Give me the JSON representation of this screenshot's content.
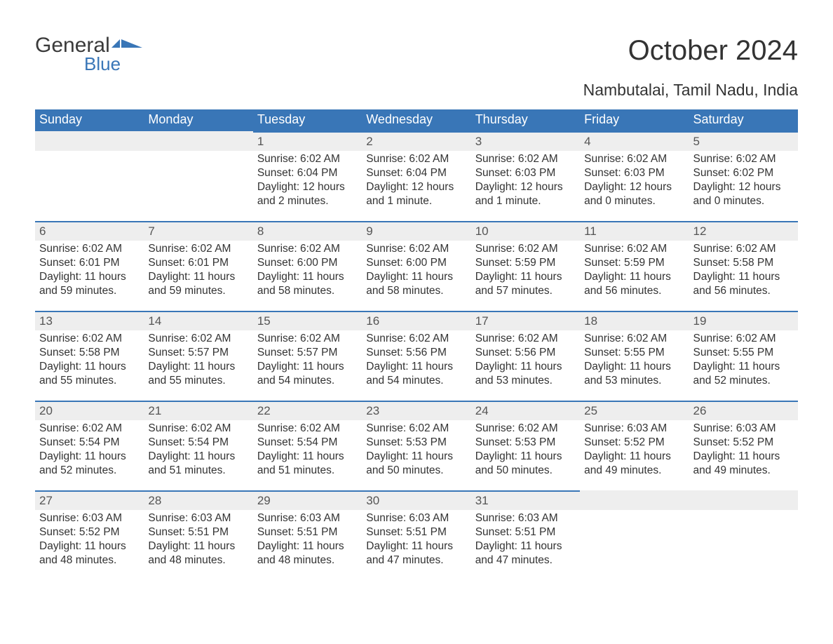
{
  "brand": {
    "word1": "General",
    "word2": "Blue",
    "flag_color": "#3976b7"
  },
  "title": "October 2024",
  "location": "Nambutalai, Tamil Nadu, India",
  "colors": {
    "header_bg": "#3976b7",
    "header_text": "#ffffff",
    "daynum_bg": "#eeeeee",
    "daynum_border": "#3976b7",
    "body_text": "#333333"
  },
  "weekday_labels": [
    "Sunday",
    "Monday",
    "Tuesday",
    "Wednesday",
    "Thursday",
    "Friday",
    "Saturday"
  ],
  "labels": {
    "sunrise": "Sunrise:",
    "sunset": "Sunset:",
    "daylight": "Daylight:"
  },
  "weeks": [
    [
      null,
      null,
      {
        "n": "1",
        "sunrise": "6:02 AM",
        "sunset": "6:04 PM",
        "daylight": "12 hours and 2 minutes."
      },
      {
        "n": "2",
        "sunrise": "6:02 AM",
        "sunset": "6:04 PM",
        "daylight": "12 hours and 1 minute."
      },
      {
        "n": "3",
        "sunrise": "6:02 AM",
        "sunset": "6:03 PM",
        "daylight": "12 hours and 1 minute."
      },
      {
        "n": "4",
        "sunrise": "6:02 AM",
        "sunset": "6:03 PM",
        "daylight": "12 hours and 0 minutes."
      },
      {
        "n": "5",
        "sunrise": "6:02 AM",
        "sunset": "6:02 PM",
        "daylight": "12 hours and 0 minutes."
      }
    ],
    [
      {
        "n": "6",
        "sunrise": "6:02 AM",
        "sunset": "6:01 PM",
        "daylight": "11 hours and 59 minutes."
      },
      {
        "n": "7",
        "sunrise": "6:02 AM",
        "sunset": "6:01 PM",
        "daylight": "11 hours and 59 minutes."
      },
      {
        "n": "8",
        "sunrise": "6:02 AM",
        "sunset": "6:00 PM",
        "daylight": "11 hours and 58 minutes."
      },
      {
        "n": "9",
        "sunrise": "6:02 AM",
        "sunset": "6:00 PM",
        "daylight": "11 hours and 58 minutes."
      },
      {
        "n": "10",
        "sunrise": "6:02 AM",
        "sunset": "5:59 PM",
        "daylight": "11 hours and 57 minutes."
      },
      {
        "n": "11",
        "sunrise": "6:02 AM",
        "sunset": "5:59 PM",
        "daylight": "11 hours and 56 minutes."
      },
      {
        "n": "12",
        "sunrise": "6:02 AM",
        "sunset": "5:58 PM",
        "daylight": "11 hours and 56 minutes."
      }
    ],
    [
      {
        "n": "13",
        "sunrise": "6:02 AM",
        "sunset": "5:58 PM",
        "daylight": "11 hours and 55 minutes."
      },
      {
        "n": "14",
        "sunrise": "6:02 AM",
        "sunset": "5:57 PM",
        "daylight": "11 hours and 55 minutes."
      },
      {
        "n": "15",
        "sunrise": "6:02 AM",
        "sunset": "5:57 PM",
        "daylight": "11 hours and 54 minutes."
      },
      {
        "n": "16",
        "sunrise": "6:02 AM",
        "sunset": "5:56 PM",
        "daylight": "11 hours and 54 minutes."
      },
      {
        "n": "17",
        "sunrise": "6:02 AM",
        "sunset": "5:56 PM",
        "daylight": "11 hours and 53 minutes."
      },
      {
        "n": "18",
        "sunrise": "6:02 AM",
        "sunset": "5:55 PM",
        "daylight": "11 hours and 53 minutes."
      },
      {
        "n": "19",
        "sunrise": "6:02 AM",
        "sunset": "5:55 PM",
        "daylight": "11 hours and 52 minutes."
      }
    ],
    [
      {
        "n": "20",
        "sunrise": "6:02 AM",
        "sunset": "5:54 PM",
        "daylight": "11 hours and 52 minutes."
      },
      {
        "n": "21",
        "sunrise": "6:02 AM",
        "sunset": "5:54 PM",
        "daylight": "11 hours and 51 minutes."
      },
      {
        "n": "22",
        "sunrise": "6:02 AM",
        "sunset": "5:54 PM",
        "daylight": "11 hours and 51 minutes."
      },
      {
        "n": "23",
        "sunrise": "6:02 AM",
        "sunset": "5:53 PM",
        "daylight": "11 hours and 50 minutes."
      },
      {
        "n": "24",
        "sunrise": "6:02 AM",
        "sunset": "5:53 PM",
        "daylight": "11 hours and 50 minutes."
      },
      {
        "n": "25",
        "sunrise": "6:03 AM",
        "sunset": "5:52 PM",
        "daylight": "11 hours and 49 minutes."
      },
      {
        "n": "26",
        "sunrise": "6:03 AM",
        "sunset": "5:52 PM",
        "daylight": "11 hours and 49 minutes."
      }
    ],
    [
      {
        "n": "27",
        "sunrise": "6:03 AM",
        "sunset": "5:52 PM",
        "daylight": "11 hours and 48 minutes."
      },
      {
        "n": "28",
        "sunrise": "6:03 AM",
        "sunset": "5:51 PM",
        "daylight": "11 hours and 48 minutes."
      },
      {
        "n": "29",
        "sunrise": "6:03 AM",
        "sunset": "5:51 PM",
        "daylight": "11 hours and 48 minutes."
      },
      {
        "n": "30",
        "sunrise": "6:03 AM",
        "sunset": "5:51 PM",
        "daylight": "11 hours and 47 minutes."
      },
      {
        "n": "31",
        "sunrise": "6:03 AM",
        "sunset": "5:51 PM",
        "daylight": "11 hours and 47 minutes."
      },
      null,
      null
    ]
  ]
}
